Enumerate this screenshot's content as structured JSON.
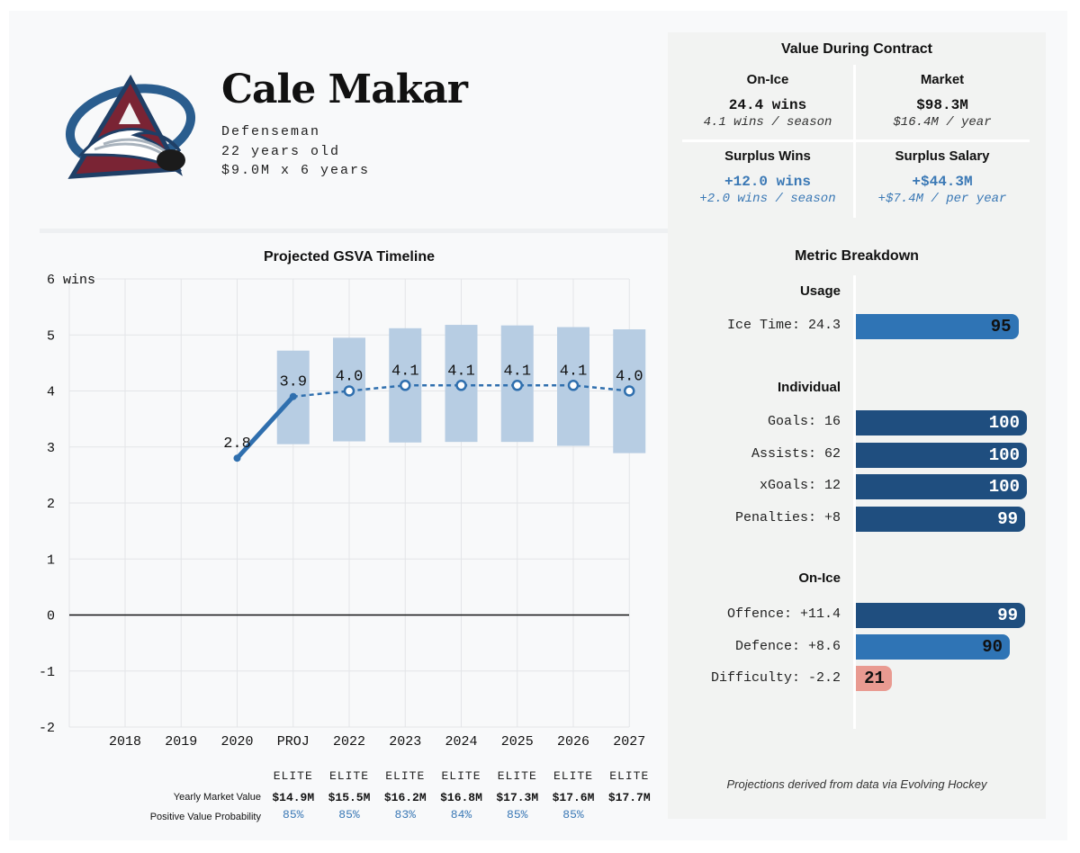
{
  "player": {
    "name": "Cale Makar",
    "position": "Defenseman",
    "age": "22 years old",
    "contract": "$9.0M x 6 years"
  },
  "value_panel": {
    "title": "Value During Contract",
    "on_ice": {
      "header": "On-Ice",
      "main": "24.4 wins",
      "sub": "4.1 wins / season"
    },
    "market": {
      "header": "Market",
      "main": "$98.3M",
      "sub": "$16.4M / year"
    },
    "surplus_wins": {
      "header": "Surplus Wins",
      "main": "+12.0 wins",
      "sub": "+2.0 wins / season"
    },
    "surplus_salary": {
      "header": "Surplus Salary",
      "main": "+$44.3M",
      "sub": "+$7.4M / per year"
    }
  },
  "metrics": {
    "title": "Metric Breakdown",
    "groups": [
      {
        "name": "Usage",
        "items": [
          {
            "label": "Ice Time: 24.3",
            "value": 95,
            "color": "#2f74b5"
          }
        ]
      },
      {
        "name": "Individual",
        "items": [
          {
            "label": "Goals: 16",
            "value": 100,
            "color": "#1f4e7f"
          },
          {
            "label": "Assists: 62",
            "value": 100,
            "color": "#1f4e7f"
          },
          {
            "label": "xGoals: 12",
            "value": 100,
            "color": "#1f4e7f"
          },
          {
            "label": "Penalties: +8",
            "value": 99,
            "color": "#1f4e7f"
          }
        ]
      },
      {
        "name": "On-Ice",
        "items": [
          {
            "label": "Offence: +11.4",
            "value": 99,
            "color": "#1f4e7f"
          },
          {
            "label": "Defence: +8.6",
            "value": 90,
            "color": "#2f74b5"
          },
          {
            "label": "Difficulty: -2.2",
            "value": 21,
            "color": "#e99a91"
          }
        ]
      }
    ],
    "footnote": "Projections derived from data via Evolving Hockey"
  },
  "chart_data": {
    "type": "line",
    "title": "Projected GSVA Timeline",
    "ylabel": "",
    "y_unit": "wins",
    "ylim": [
      -2,
      6
    ],
    "yticks": [
      -2,
      -1,
      0,
      1,
      2,
      3,
      4,
      5,
      6
    ],
    "categories": [
      "2018",
      "2019",
      "2020",
      "PROJ",
      "2022",
      "2023",
      "2024",
      "2025",
      "2026",
      "2027"
    ],
    "actual": {
      "x": [
        "2020",
        "PROJ"
      ],
      "values": [
        2.8,
        3.9
      ],
      "labels": [
        "2.8",
        "3.9"
      ]
    },
    "projected": {
      "x": [
        "PROJ",
        "2022",
        "2023",
        "2024",
        "2025",
        "2026",
        "2027"
      ],
      "values": [
        3.9,
        4.0,
        4.1,
        4.1,
        4.1,
        4.1,
        4.0
      ],
      "labels": [
        "",
        "4.0",
        "4.1",
        "4.1",
        "4.1",
        "4.1",
        "4.0"
      ]
    },
    "ranges": [
      {
        "x": "PROJ",
        "low": 3.05,
        "high": 4.72
      },
      {
        "x": "2022",
        "low": 3.1,
        "high": 4.95
      },
      {
        "x": "2023",
        "low": 3.08,
        "high": 5.12
      },
      {
        "x": "2024",
        "low": 3.09,
        "high": 5.18
      },
      {
        "x": "2025",
        "low": 3.09,
        "high": 5.17
      },
      {
        "x": "2026",
        "low": 3.02,
        "high": 5.14
      },
      {
        "x": "2027",
        "low": 2.89,
        "high": 5.1
      }
    ],
    "colors": {
      "line": "#2f6fae",
      "band": "#b7cde3",
      "zero": "#111111",
      "grid": "#e3e5e8"
    },
    "grid": true
  },
  "contract_table": {
    "row_labels": {
      "market": "Yearly Market Value",
      "prob": "Positive Value Probability"
    },
    "columns": [
      {
        "tier": "ELITE",
        "market": "$14.9M",
        "prob": "85%"
      },
      {
        "tier": "ELITE",
        "market": "$15.5M",
        "prob": "85%"
      },
      {
        "tier": "ELITE",
        "market": "$16.2M",
        "prob": "83%"
      },
      {
        "tier": "ELITE",
        "market": "$16.8M",
        "prob": "84%"
      },
      {
        "tier": "ELITE",
        "market": "$17.3M",
        "prob": "85%"
      },
      {
        "tier": "ELITE",
        "market": "$17.6M",
        "prob": "85%"
      },
      {
        "tier": "ELITE",
        "market": "$17.7M",
        "prob": ""
      }
    ]
  },
  "logo": {
    "name": "avalanche-logo"
  }
}
